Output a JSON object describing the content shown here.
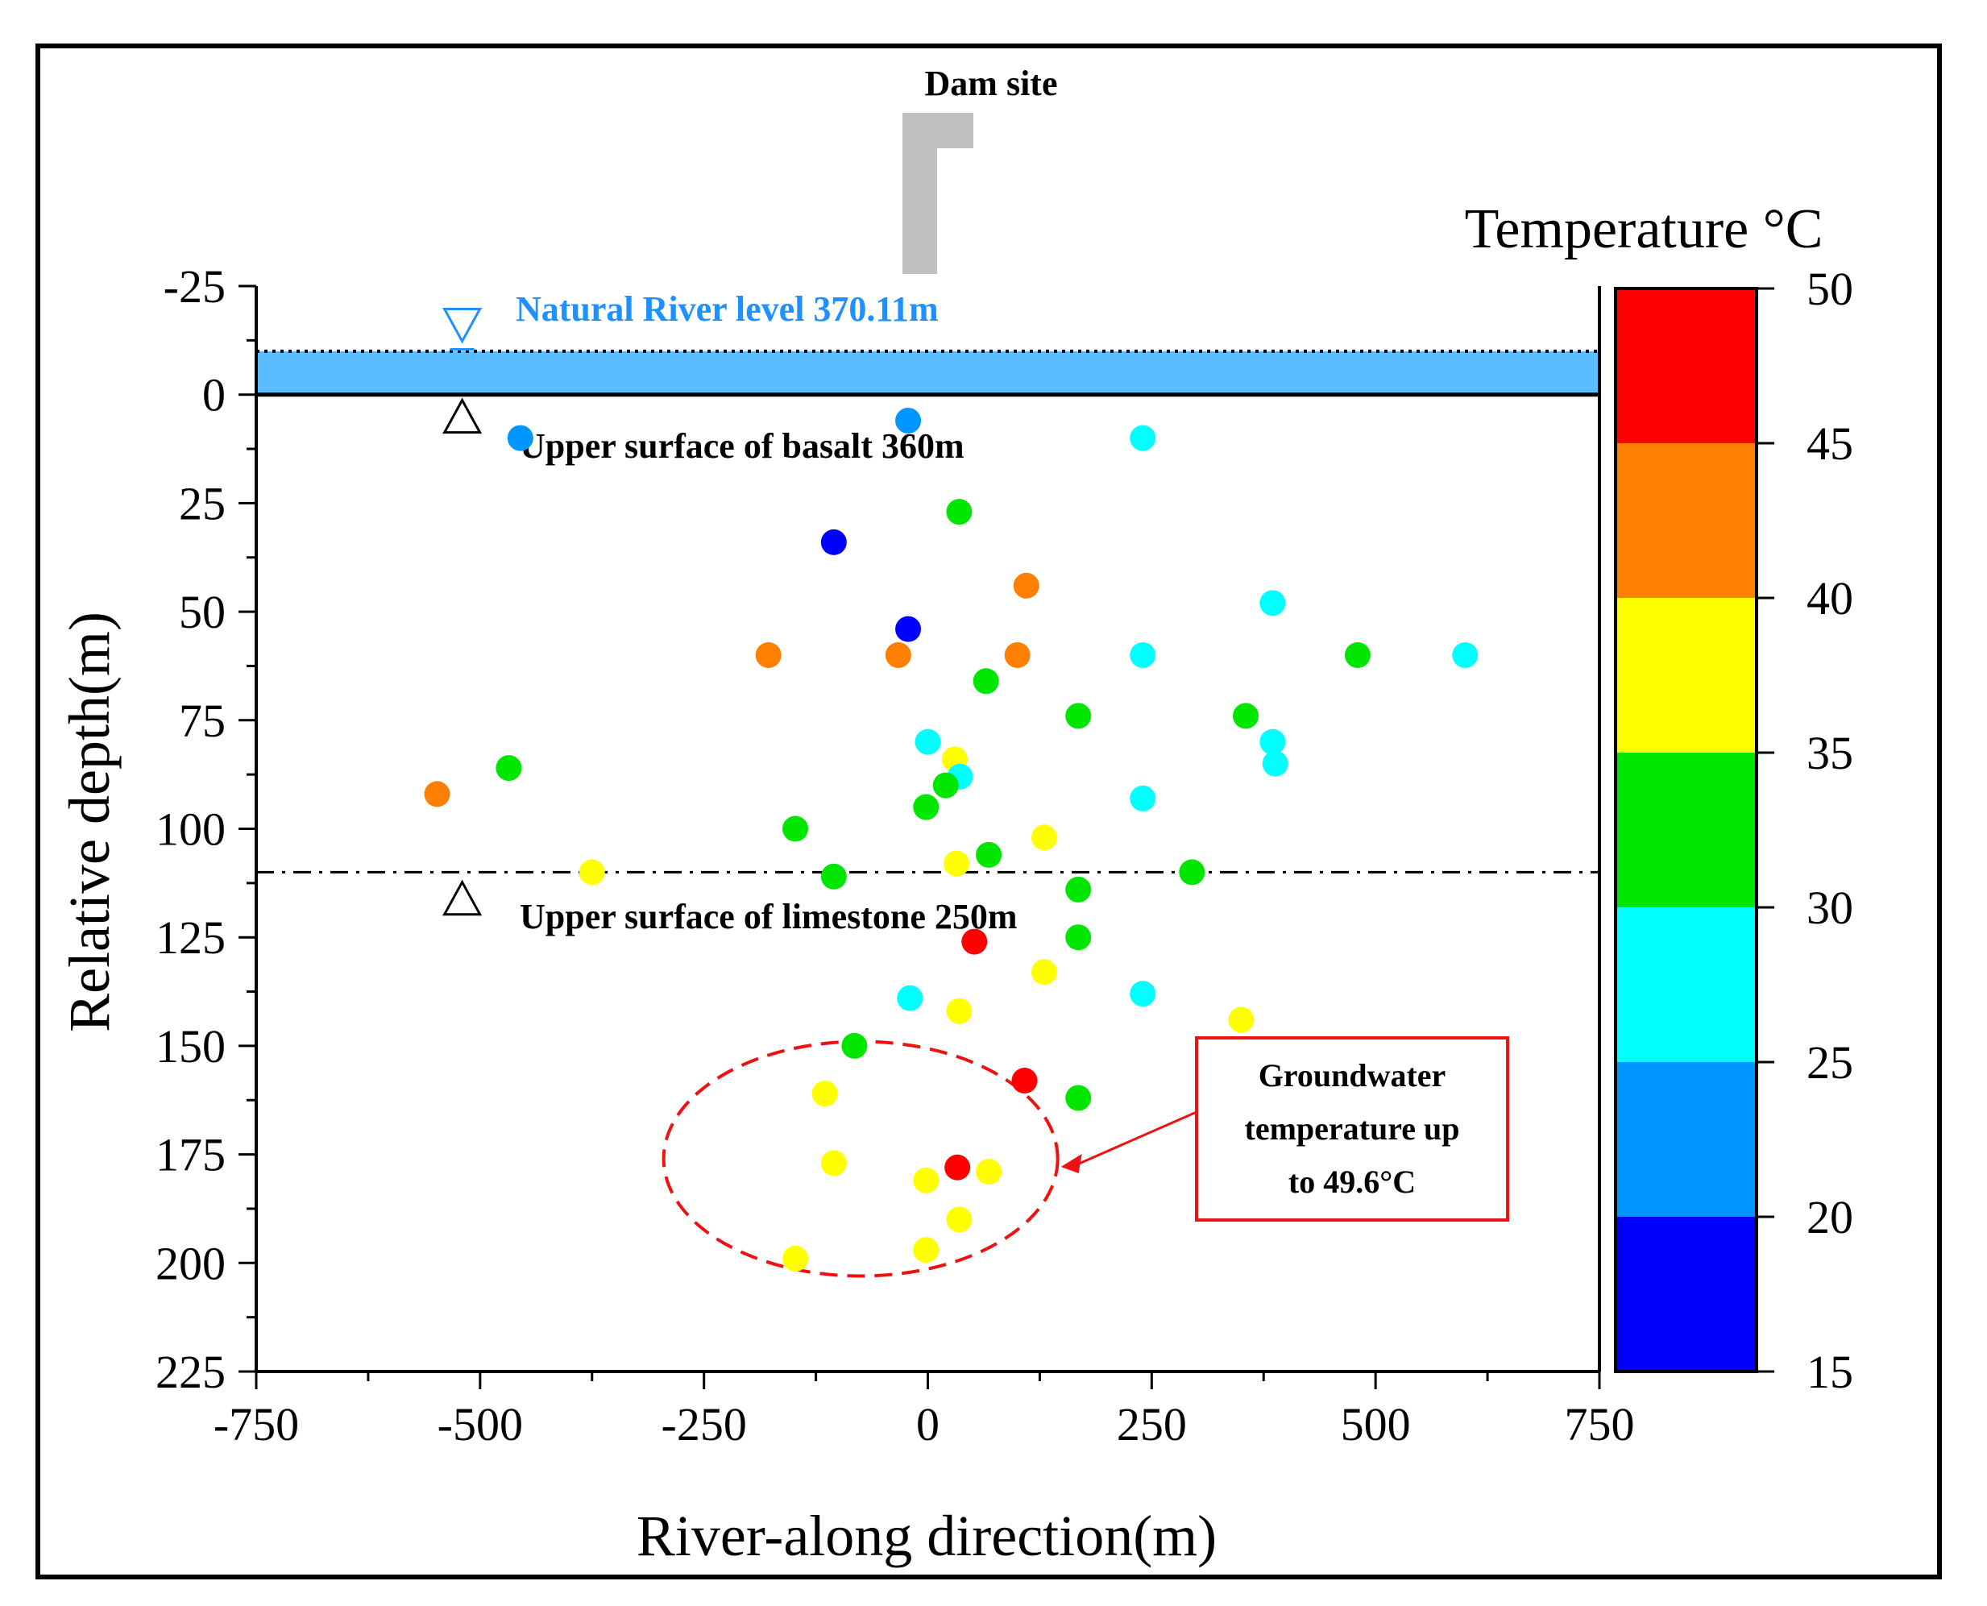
{
  "chart_data": {
    "type": "scatter",
    "title": "",
    "xlabel": "River-along direction(m)",
    "ylabel": "Relative depth(m)",
    "xlim": [
      -750,
      750
    ],
    "ylim": [
      -25,
      225
    ],
    "y_inverted": true,
    "x_ticks": [
      -750,
      -500,
      -250,
      0,
      250,
      500,
      750
    ],
    "y_ticks": [
      -25,
      0,
      25,
      50,
      75,
      100,
      125,
      150,
      175,
      200,
      225
    ],
    "colorbar": {
      "title": "Temperature °C",
      "ticks": [
        15,
        20,
        25,
        30,
        35,
        40,
        45,
        50
      ],
      "bands": [
        {
          "from": 15,
          "to": 20,
          "color": "#0000ff"
        },
        {
          "from": 20,
          "to": 25,
          "color": "#0096ff"
        },
        {
          "from": 25,
          "to": 30,
          "color": "#00ffff"
        },
        {
          "from": 30,
          "to": 35,
          "color": "#00e600"
        },
        {
          "from": 35,
          "to": 40,
          "color": "#ffff00"
        },
        {
          "from": 40,
          "to": 45,
          "color": "#ff7f00"
        },
        {
          "from": 45,
          "to": 50,
          "color": "#ff0000"
        }
      ]
    },
    "points": [
      {
        "x": -455,
        "y": 10,
        "t": 22
      },
      {
        "x": -22,
        "y": 6,
        "t": 22
      },
      {
        "x": 240,
        "y": 10,
        "t": 27
      },
      {
        "x": 35,
        "y": 27,
        "t": 32
      },
      {
        "x": -105,
        "y": 34,
        "t": 17
      },
      {
        "x": 110,
        "y": 44,
        "t": 42
      },
      {
        "x": 385,
        "y": 48,
        "t": 27
      },
      {
        "x": -22,
        "y": 54,
        "t": 17
      },
      {
        "x": -178,
        "y": 60,
        "t": 42
      },
      {
        "x": -33,
        "y": 60,
        "t": 42
      },
      {
        "x": 100,
        "y": 60,
        "t": 42
      },
      {
        "x": 240,
        "y": 60,
        "t": 27
      },
      {
        "x": 480,
        "y": 60,
        "t": 32
      },
      {
        "x": 600,
        "y": 60,
        "t": 27
      },
      {
        "x": 65,
        "y": 66,
        "t": 32
      },
      {
        "x": 168,
        "y": 74,
        "t": 32
      },
      {
        "x": 355,
        "y": 74,
        "t": 32
      },
      {
        "x": 0,
        "y": 80,
        "t": 27
      },
      {
        "x": 385,
        "y": 80,
        "t": 27
      },
      {
        "x": 30,
        "y": 84,
        "t": 37
      },
      {
        "x": 388,
        "y": 85,
        "t": 27
      },
      {
        "x": -468,
        "y": 86,
        "t": 32
      },
      {
        "x": 36,
        "y": 88,
        "t": 27
      },
      {
        "x": 20,
        "y": 90,
        "t": 32
      },
      {
        "x": -548,
        "y": 92,
        "t": 42
      },
      {
        "x": 240,
        "y": 93,
        "t": 27
      },
      {
        "x": -2,
        "y": 95,
        "t": 32
      },
      {
        "x": -148,
        "y": 100,
        "t": 32
      },
      {
        "x": 130,
        "y": 102,
        "t": 37
      },
      {
        "x": 68,
        "y": 106,
        "t": 32
      },
      {
        "x": 32,
        "y": 108,
        "t": 37
      },
      {
        "x": -375,
        "y": 110,
        "t": 37
      },
      {
        "x": -105,
        "y": 111,
        "t": 32
      },
      {
        "x": 295,
        "y": 110,
        "t": 32
      },
      {
        "x": 168,
        "y": 114,
        "t": 32
      },
      {
        "x": 168,
        "y": 125,
        "t": 32
      },
      {
        "x": 52,
        "y": 126,
        "t": 47
      },
      {
        "x": 130,
        "y": 133,
        "t": 37
      },
      {
        "x": 240,
        "y": 138,
        "t": 27
      },
      {
        "x": -20,
        "y": 139,
        "t": 27
      },
      {
        "x": 35,
        "y": 142,
        "t": 37
      },
      {
        "x": 350,
        "y": 144,
        "t": 37
      },
      {
        "x": -82,
        "y": 150,
        "t": 32
      },
      {
        "x": 108,
        "y": 158,
        "t": 47
      },
      {
        "x": -115,
        "y": 161,
        "t": 37
      },
      {
        "x": 168,
        "y": 162,
        "t": 32
      },
      {
        "x": -105,
        "y": 177,
        "t": 37
      },
      {
        "x": 33,
        "y": 178,
        "t": 47
      },
      {
        "x": 68,
        "y": 179,
        "t": 37
      },
      {
        "x": -2,
        "y": 181,
        "t": 37
      },
      {
        "x": 35,
        "y": 190,
        "t": 37
      },
      {
        "x": -2,
        "y": 197,
        "t": 37
      },
      {
        "x": -148,
        "y": 199,
        "t": 37
      }
    ],
    "reference_lines": [
      {
        "y": -10,
        "style": "dotted",
        "label": "Natural River level 370.11m"
      },
      {
        "y": 0,
        "style": "solid",
        "label": "Upper surface of basalt 360m"
      },
      {
        "y": 110,
        "style": "dashdot",
        "label": "Upper surface of limestone 250m"
      }
    ],
    "water_band": {
      "from": -10,
      "to": 0,
      "color": "#5bbcff"
    },
    "markers": {
      "x": -520,
      "river_y": -16,
      "basalt_y": 5,
      "limestone_y": 116
    },
    "dam_label": "Dam site",
    "callout": {
      "lines": [
        "Groundwater",
        "temperature up",
        "to 49.6°C"
      ],
      "ellipse_center": [
        -75,
        176
      ],
      "ellipse_radius": [
        220,
        27
      ],
      "arrow_from": [
        300,
        170
      ],
      "arrow_to": [
        190,
        178
      ]
    }
  }
}
